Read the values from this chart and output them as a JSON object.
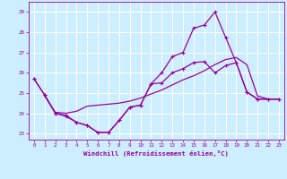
{
  "xlabel": "Windchill (Refroidissement éolien,°C)",
  "bg_color": "#cceeff",
  "line_color": "#990099",
  "grid_color": "#ffffff",
  "xlim": [
    -0.5,
    23.5
  ],
  "ylim": [
    22.7,
    29.5
  ],
  "yticks": [
    23,
    24,
    25,
    26,
    27,
    28,
    29
  ],
  "xticks": [
    0,
    1,
    2,
    3,
    4,
    5,
    6,
    7,
    8,
    9,
    10,
    11,
    12,
    13,
    14,
    15,
    16,
    17,
    18,
    19,
    20,
    21,
    22,
    23
  ],
  "line1_x": [
    0,
    1,
    2,
    3,
    4,
    5,
    6,
    7,
    8,
    9,
    10,
    11,
    12,
    13,
    14,
    15,
    16,
    17,
    18,
    19,
    20,
    21,
    22,
    23
  ],
  "line1_y": [
    25.7,
    24.9,
    24.0,
    23.9,
    23.55,
    23.4,
    23.05,
    23.05,
    23.65,
    24.3,
    24.4,
    25.45,
    26.0,
    26.8,
    27.0,
    28.2,
    28.35,
    29.0,
    27.75,
    26.5,
    25.05,
    24.7,
    24.7,
    24.7
  ],
  "line2_x": [
    0,
    1,
    2,
    3,
    4,
    5,
    6,
    7,
    8,
    9,
    10,
    11,
    12,
    13,
    14,
    15,
    16,
    17,
    18,
    19,
    20,
    21,
    22,
    23
  ],
  "line2_y": [
    25.7,
    24.9,
    24.0,
    23.85,
    23.55,
    23.4,
    23.05,
    23.05,
    23.65,
    24.3,
    24.4,
    25.45,
    25.5,
    26.0,
    26.2,
    26.5,
    26.55,
    26.0,
    26.35,
    26.5,
    25.05,
    24.7,
    24.7,
    24.7
  ],
  "line3_x": [
    1,
    2,
    3,
    4,
    5,
    6,
    7,
    8,
    9,
    10,
    11,
    12,
    13,
    14,
    15,
    16,
    17,
    18,
    19,
    20,
    21,
    22,
    23
  ],
  "line3_y": [
    24.85,
    24.05,
    24.0,
    24.1,
    24.35,
    24.4,
    24.45,
    24.5,
    24.6,
    24.75,
    24.95,
    25.15,
    25.4,
    25.65,
    25.85,
    26.1,
    26.4,
    26.65,
    26.75,
    26.4,
    24.85,
    24.7,
    24.7
  ]
}
